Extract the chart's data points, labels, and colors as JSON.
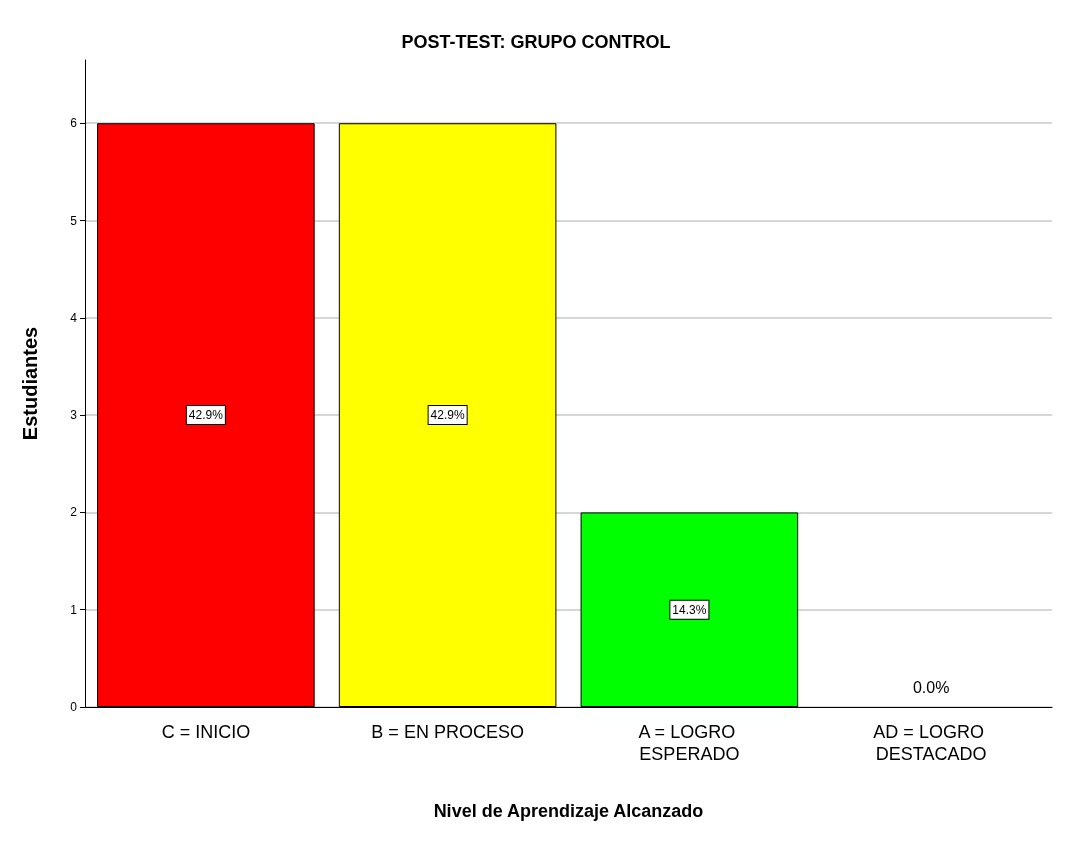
{
  "chart_data": {
    "type": "bar",
    "title": "POST-TEST: GRUPO CONTROL",
    "xlabel": "Nivel de Aprendizaje Alcanzado",
    "ylabel": "Estudiantes",
    "categories": [
      "C = INICIO",
      "B = EN PROCESO",
      "A = LOGRO ESPERADO",
      "AD = LOGRO DESTACADO"
    ],
    "values": [
      6,
      6,
      2,
      0
    ],
    "colors": [
      "#ff0000",
      "#ffff00",
      "#00ff00",
      "#0000ff"
    ],
    "annotations": [
      {
        "text": "42.9%",
        "x": "C = INICIO",
        "y": 3
      },
      {
        "text": "42.9%",
        "x": "B = EN PROCESO",
        "y": 3
      },
      {
        "text": "14.3%",
        "x": "A = LOGRO ESPERADO",
        "y": 1
      },
      {
        "text": "0.0%",
        "x": "AD = LOGRO DESTACADO",
        "y": 0
      }
    ],
    "ylim": [
      0,
      6.65
    ],
    "yticks": [
      0,
      1,
      2,
      3,
      4,
      5,
      6
    ],
    "grid": "y"
  }
}
